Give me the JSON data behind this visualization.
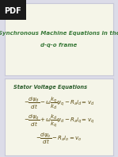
{
  "bg_color": "#dcdce8",
  "top_box_color": "#f5f5e8",
  "bottom_box_color": "#f5f5e8",
  "border_color": "#c8c8d8",
  "pdf_bg": "#1a1a1a",
  "pdf_text": "#ffffff",
  "title_color": "#3a7a3a",
  "section_color": "#2e5f2e",
  "eq_color": "#5a4a10",
  "title_line1": "Synchronous Machine Equations in the",
  "title_line2": "d-q-o frame",
  "section": "Stator Voltage Equations"
}
